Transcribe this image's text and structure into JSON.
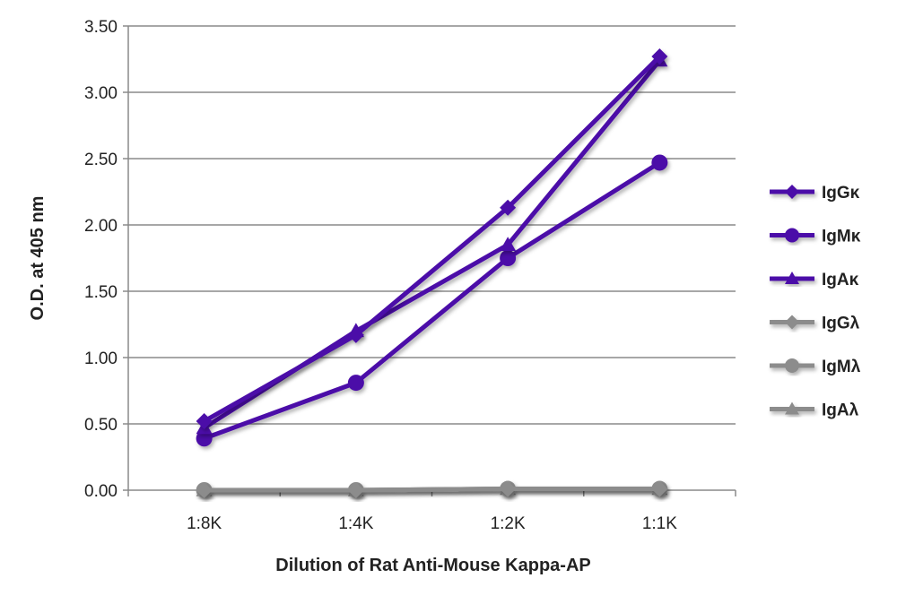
{
  "chart_data": {
    "type": "line",
    "title": "",
    "xlabel": "Dilution of Rat Anti-Mouse Kappa-AP",
    "ylabel": "O.D. at 405 nm",
    "categories": [
      "1:8K",
      "1:4K",
      "1:2K",
      "1:1K"
    ],
    "ylim": [
      0,
      3.5
    ],
    "yticks": [
      "0.00",
      "0.50",
      "1.00",
      "1.50",
      "2.00",
      "2.50",
      "3.00",
      "3.50"
    ],
    "grid": true,
    "legend_position": "right",
    "series": [
      {
        "name": "IgGκ",
        "marker": "diamond",
        "color": "#4B0AA8",
        "values": [
          0.52,
          1.17,
          2.13,
          3.27
        ]
      },
      {
        "name": "IgMκ",
        "marker": "circle",
        "color": "#4B0AA8",
        "values": [
          0.39,
          0.81,
          1.75,
          2.47
        ]
      },
      {
        "name": "IgAκ",
        "marker": "triangle",
        "color": "#4B0AA8",
        "values": [
          0.47,
          1.2,
          1.85,
          3.24
        ]
      },
      {
        "name": "IgGλ",
        "marker": "diamond",
        "color": "#8C8C8C",
        "values": [
          0.0,
          0.0,
          0.01,
          0.01
        ]
      },
      {
        "name": "IgMλ",
        "marker": "circle",
        "color": "#8C8C8C",
        "values": [
          0.0,
          0.0,
          0.01,
          0.01
        ]
      },
      {
        "name": "IgAλ",
        "marker": "triangle",
        "color": "#8C8C8C",
        "values": [
          0.0,
          0.0,
          0.01,
          0.01
        ]
      }
    ]
  }
}
